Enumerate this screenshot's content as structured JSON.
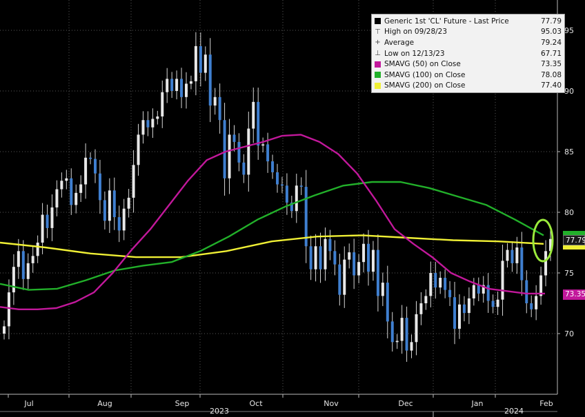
{
  "chart_data": {
    "type": "candlestick",
    "title": "",
    "y_ticks": [
      70,
      75,
      80,
      85,
      90,
      95
    ],
    "ylim": [
      65.0,
      97.5
    ],
    "x_months": [
      "Jul",
      "Aug",
      "Sep",
      "Oct",
      "Nov",
      "Dec",
      "Jan",
      "Feb"
    ],
    "x_years": [
      "2023",
      "2024"
    ],
    "legend": {
      "price": {
        "label": "Generic 1st 'CL' Future - Last Price",
        "value": "77.79",
        "color": "#000000"
      },
      "high": {
        "label": "High on 09/28/23",
        "value": "95.03"
      },
      "average": {
        "label": "Average",
        "value": "79.24"
      },
      "low": {
        "label": "Low on 12/13/23",
        "value": "67.71"
      },
      "sma50": {
        "label": "SMAVG (50)  on Close",
        "value": "73.35",
        "color": "#c2189b"
      },
      "sma100": {
        "label": "SMAVG (100)  on Close",
        "value": "78.08",
        "color": "#22b02a"
      },
      "sma200": {
        "label": "SMAVG (200)  on Close",
        "value": "77.40",
        "color": "#f0f035"
      }
    },
    "last_price_tag": "77.79",
    "sma50_tag": "73.35",
    "closes": [
      70.6,
      73.4,
      75.5,
      76.8,
      74.5,
      75.8,
      76.4,
      77.5,
      79.8,
      78.7,
      80.4,
      81.9,
      82.6,
      82.8,
      80.6,
      81.6,
      82.3,
      84.5,
      84.4,
      83.2,
      81.0,
      79.3,
      81.8,
      79.6,
      78.5,
      80.3,
      81.2,
      83.9,
      86.4,
      87.6,
      87.0,
      87.7,
      87.9,
      89.9,
      91.0,
      90.0,
      91.0,
      89.5,
      90.6,
      90.8,
      93.7,
      91.5,
      93.0,
      88.8,
      89.5,
      87.6,
      82.8,
      86.4,
      85.8,
      84.1,
      83.1,
      86.9,
      89.1,
      85.5,
      85.6,
      84.2,
      83.3,
      82.3,
      82.2,
      80.8,
      80.1,
      82.2,
      82.1,
      77.2,
      75.3,
      77.2,
      75.3,
      77.8,
      76.8,
      75.7,
      73.2,
      76.1,
      76.7,
      74.8,
      75.9,
      77.4,
      75.1,
      76.9,
      73.1,
      74.2,
      71.0,
      69.3,
      69.4,
      71.3,
      68.6,
      69.3,
      71.6,
      72.5,
      73.1,
      75.0,
      73.8,
      74.6,
      73.6,
      73.0,
      70.4,
      72.4,
      71.7,
      72.9,
      74.0,
      73.3,
      74.0,
      72.7,
      72.2,
      72.8,
      76.0,
      76.9,
      75.8,
      77.1,
      74.4,
      72.5,
      72.0,
      73.1,
      74.8,
      76.8,
      77.8
    ],
    "sma50": [
      72.2,
      72.0,
      72.0,
      72.1,
      72.6,
      73.4,
      75.0,
      76.9,
      78.6,
      80.6,
      82.6,
      84.3,
      85.0,
      85.4,
      85.8,
      86.3,
      86.4,
      85.8,
      84.8,
      83.2,
      81.0,
      78.6,
      77.4,
      76.3,
      75.0,
      74.3,
      73.7,
      73.5,
      73.3,
      73.3
    ],
    "sma100": [
      74.1,
      73.6,
      73.7,
      74.4,
      75.2,
      75.6,
      75.9,
      76.8,
      78.0,
      79.4,
      80.5,
      81.4,
      82.2,
      82.5,
      82.5,
      82.0,
      81.3,
      80.6,
      79.4,
      78.1
    ],
    "sma200": [
      77.5,
      77.1,
      76.6,
      76.3,
      76.3,
      76.8,
      77.6,
      78.0,
      78.1,
      77.9,
      77.7,
      77.6,
      77.4
    ]
  }
}
